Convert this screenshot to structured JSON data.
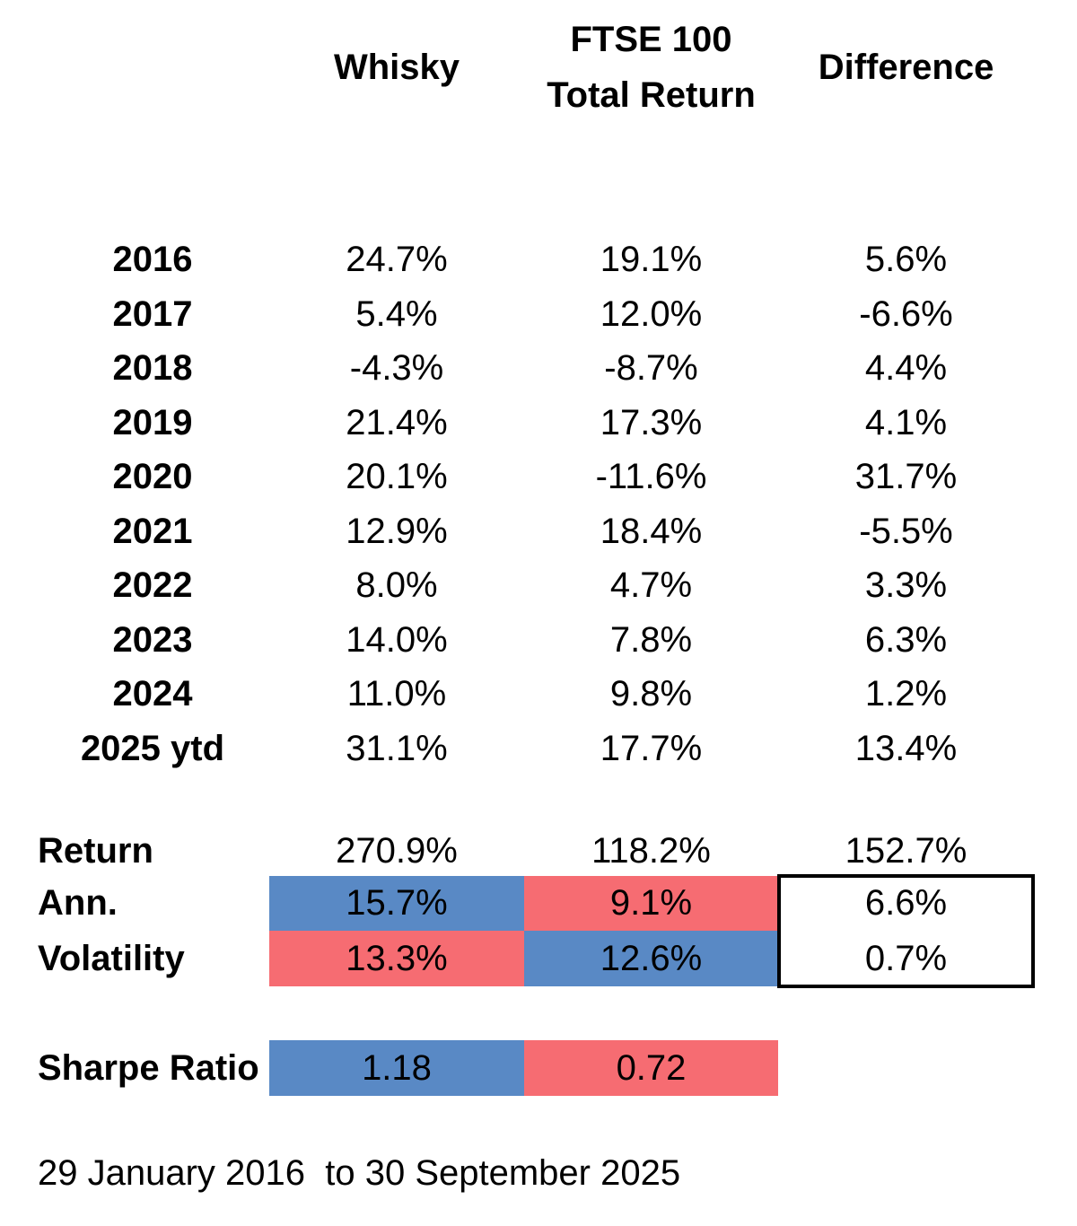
{
  "colors": {
    "blue_cell": "#5989C5",
    "red_cell": "#F66C72",
    "box_border": "#000000"
  },
  "header": {
    "whisky": "Whisky",
    "ftse_line1": "FTSE 100",
    "ftse_line2": "Total Return",
    "difference": "Difference"
  },
  "footer": {
    "period": "29 January 2016  to 30 September 2025"
  },
  "chart_data": {
    "type": "table",
    "columns": [
      "",
      "Whisky",
      "FTSE 100 Total Return",
      "Difference"
    ],
    "rows": [
      [
        "2016",
        "24.7%",
        "19.1%",
        "5.6%"
      ],
      [
        "2017",
        "5.4%",
        "12.0%",
        "-6.6%"
      ],
      [
        "2018",
        "-4.3%",
        "-8.7%",
        "4.4%"
      ],
      [
        "2019",
        "21.4%",
        "17.3%",
        "4.1%"
      ],
      [
        "2020",
        "20.1%",
        "-11.6%",
        "31.7%"
      ],
      [
        "2021",
        "12.9%",
        "18.4%",
        "-5.5%"
      ],
      [
        "2022",
        "8.0%",
        "4.7%",
        "3.3%"
      ],
      [
        "2023",
        "14.0%",
        "7.8%",
        "6.3%"
      ],
      [
        "2024",
        "11.0%",
        "9.8%",
        "1.2%"
      ],
      [
        "2025 ytd",
        "31.1%",
        "17.7%",
        "13.4%"
      ]
    ],
    "summary_rows": [
      [
        "Return",
        "270.9%",
        "118.2%",
        "152.7%"
      ],
      [
        "Ann.",
        "15.7%",
        "9.1%",
        "6.6%"
      ],
      [
        "Volatility",
        "13.3%",
        "12.6%",
        "0.7%"
      ],
      [
        "Sharpe Ratio",
        "1.18",
        "0.72",
        ""
      ]
    ],
    "cell_fill_layout": {
      "ann_whisky": "blue",
      "ann_ftse": "red",
      "volatility_whisky": "red",
      "volatility_ftse": "blue",
      "sharpe_whisky": "blue",
      "sharpe_ftse": "red",
      "difference_ann_volatility": "white-with-black-border"
    },
    "period": "29 January 2016  to 30 September 2025"
  }
}
